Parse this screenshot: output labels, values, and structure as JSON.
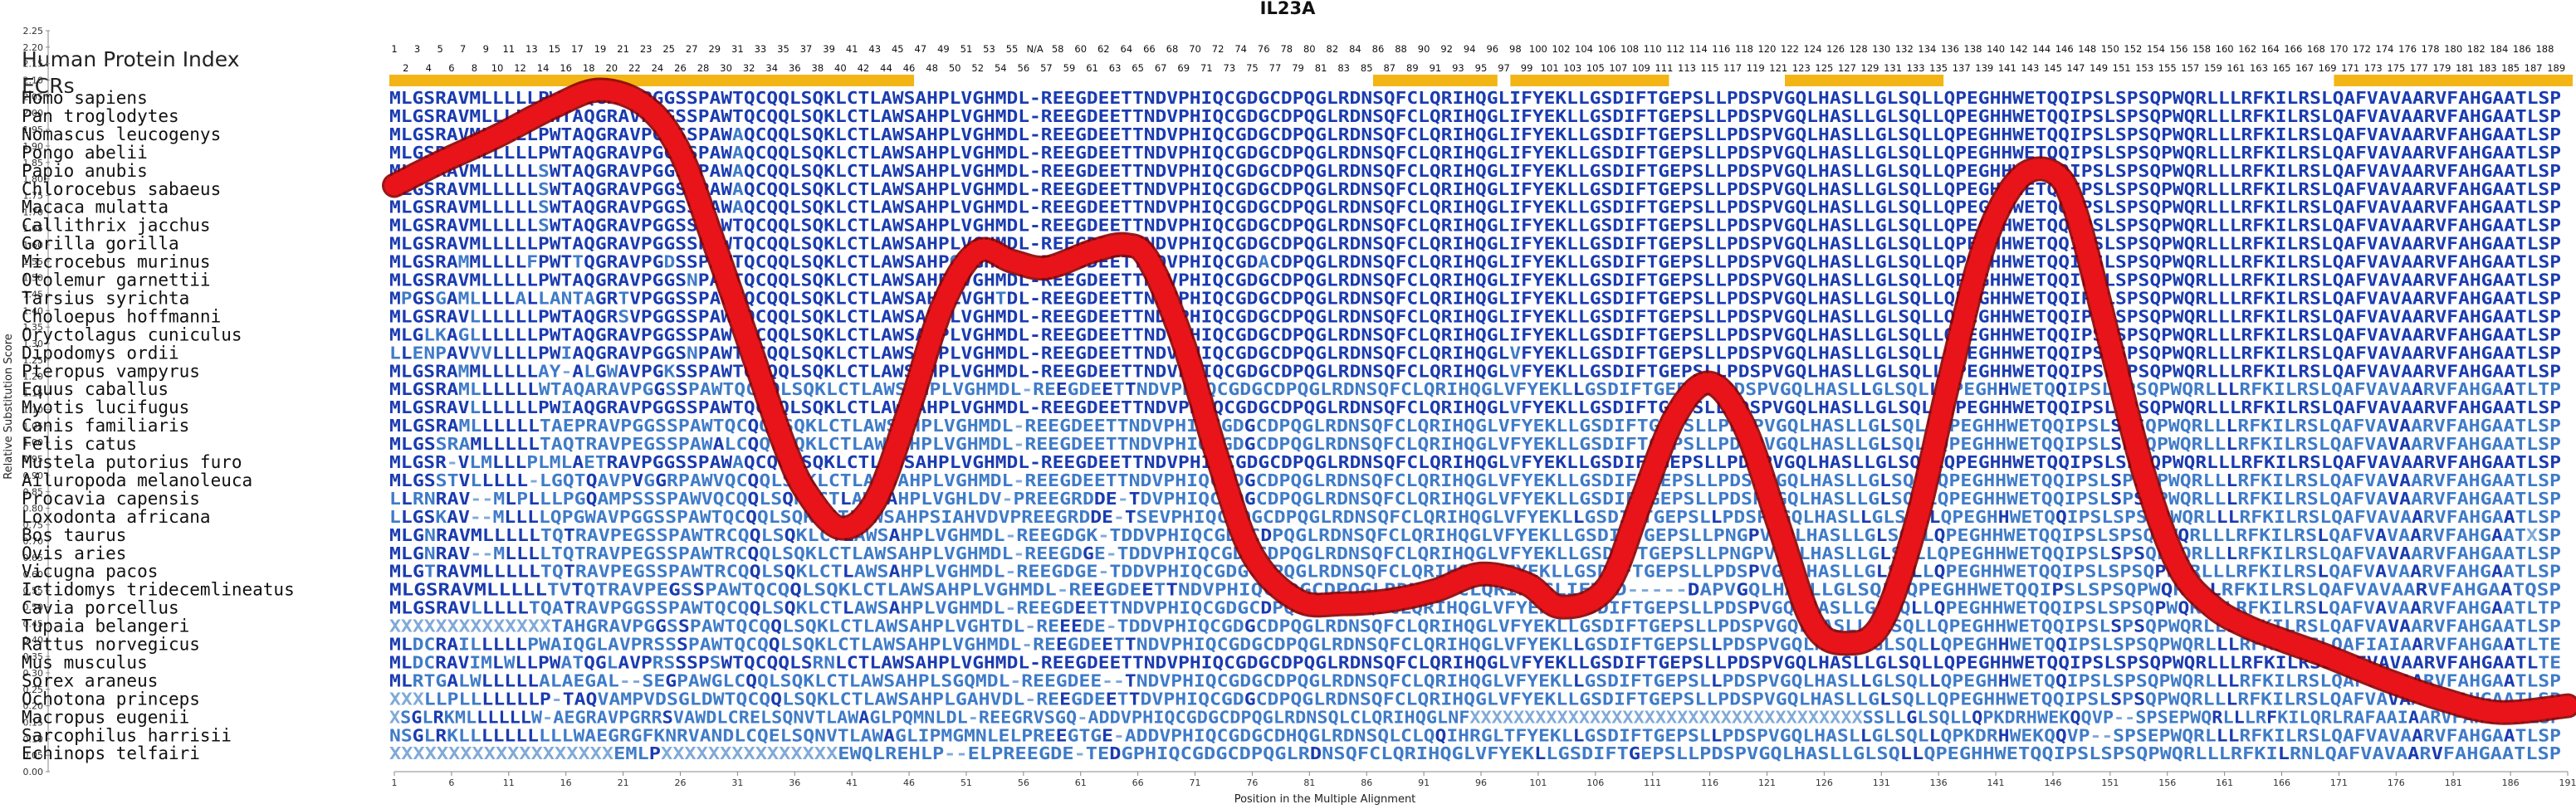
{
  "chart_data": {
    "type": "line",
    "title": "IL23A",
    "xlabel": "Position in the Multiple Alignment",
    "ylabel": "Relative Substitution Score",
    "xlim": [
      1,
      191
    ],
    "ylim": [
      0,
      2.25
    ],
    "y_ticks": [
      "0.00",
      "0.05",
      "0.10",
      "0.15",
      "0.20",
      "0.25",
      "0.30",
      "0.35",
      "0.40",
      "0.45",
      "0.50",
      "0.55",
      "0.60",
      "0.65",
      "0.70",
      "0.75",
      "0.80",
      "0.85",
      "0.90",
      "0.95",
      "1.00",
      "1.05",
      "1.10",
      "1.15",
      "1.20",
      "1.25",
      "1.30",
      "1.35",
      "1.40",
      "1.45",
      "1.50",
      "1.55",
      "1.60",
      "1.65",
      "1.70",
      "1.75",
      "1.80",
      "1.85",
      "1.90",
      "1.95",
      "2.00",
      "2.05",
      "2.10",
      "2.15",
      "2.20",
      "2.25"
    ],
    "x_ticks": [
      "1",
      "6",
      "11",
      "16",
      "21",
      "26",
      "31",
      "36",
      "41",
      "46",
      "51",
      "56",
      "61",
      "66",
      "71",
      "76",
      "81",
      "86",
      "91",
      "96",
      "101",
      "106",
      "111",
      "116",
      "121",
      "126",
      "131",
      "136",
      "141",
      "146",
      "151",
      "156",
      "161",
      "166",
      "171",
      "176",
      "181",
      "186",
      "191"
    ],
    "series": [
      {
        "x": [
          1,
          5,
          10,
          15,
          19,
          23,
          26,
          29,
          32,
          35,
          37,
          40,
          43,
          46,
          49,
          52,
          55,
          58,
          62,
          65,
          67,
          70,
          73,
          76,
          80,
          84,
          88,
          92,
          96,
          100,
          103,
          107,
          110,
          113,
          116,
          119,
          122,
          125,
          128,
          131,
          134,
          137,
          140,
          143,
          146,
          148,
          151,
          154,
          157,
          160,
          163,
          166,
          170,
          175,
          180,
          185,
          191
        ],
        "y": [
          1.78,
          1.85,
          1.93,
          2.02,
          2.07,
          2.02,
          1.88,
          1.6,
          1.3,
          1.0,
          0.85,
          0.74,
          0.82,
          1.1,
          1.42,
          1.58,
          1.55,
          1.53,
          1.58,
          1.6,
          1.55,
          1.3,
          0.95,
          0.66,
          0.52,
          0.51,
          0.52,
          0.55,
          0.6,
          0.57,
          0.5,
          0.56,
          0.82,
          1.08,
          1.18,
          1.05,
          0.75,
          0.45,
          0.39,
          0.45,
          0.75,
          1.2,
          1.6,
          1.8,
          1.82,
          1.7,
          1.3,
          0.9,
          0.62,
          0.5,
          0.44,
          0.4,
          0.35,
          0.28,
          0.22,
          0.18,
          0.2
        ]
      }
    ],
    "header": {
      "index_label": "Human Protein Index",
      "ecr_label": "ECRs",
      "index_row1": [
        "1",
        "3",
        "5",
        "7",
        "9",
        "11",
        "13",
        "15",
        "17",
        "19",
        "21",
        "23",
        "25",
        "27",
        "29",
        "31",
        "33",
        "35",
        "37",
        "39",
        "41",
        "43",
        "45",
        "47",
        "49",
        "51",
        "53",
        "55",
        "N/A",
        "58",
        "60",
        "62",
        "64",
        "66",
        "68",
        "70",
        "72",
        "74",
        "76",
        "78",
        "80",
        "82",
        "84",
        "86",
        "88",
        "90",
        "92",
        "94",
        "96",
        "98",
        "100",
        "102",
        "104",
        "106",
        "108",
        "110",
        "112",
        "114",
        "116",
        "118",
        "120",
        "122",
        "124",
        "126",
        "128",
        "130",
        "132",
        "134",
        "136",
        "138",
        "140",
        "142",
        "144",
        "146",
        "148",
        "150",
        "152",
        "154",
        "156",
        "158",
        "160",
        "162",
        "164",
        "166",
        "168",
        "170",
        "172",
        "174",
        "176",
        "178",
        "180",
        "182",
        "184",
        "186",
        "188"
      ],
      "index_row2": [
        "2",
        "4",
        "6",
        "8",
        "10",
        "12",
        "14",
        "16",
        "18",
        "20",
        "22",
        "24",
        "26",
        "28",
        "30",
        "32",
        "34",
        "36",
        "38",
        "40",
        "42",
        "44",
        "46",
        "48",
        "50",
        "52",
        "54",
        "56",
        "57",
        "59",
        "61",
        "63",
        "65",
        "67",
        "69",
        "71",
        "73",
        "75",
        "77",
        "79",
        "81",
        "83",
        "85",
        "87",
        "89",
        "91",
        "93",
        "95",
        "97",
        "99",
        "101",
        "103",
        "105",
        "107",
        "109",
        "111",
        "113",
        "115",
        "117",
        "119",
        "121",
        "123",
        "125",
        "127",
        "129",
        "131",
        "133",
        "135",
        "137",
        "139",
        "141",
        "143",
        "145",
        "147",
        "149",
        "151",
        "153",
        "155",
        "157",
        "159",
        "161",
        "163",
        "165",
        "167",
        "169",
        "171",
        "173",
        "175",
        "177",
        "179",
        "181",
        "183",
        "185",
        "187",
        "189"
      ],
      "ecr_bars": [
        [
          1,
          46
        ],
        [
          87,
          97
        ],
        [
          99,
          112
        ],
        [
          123,
          136
        ],
        [
          171,
          191
        ]
      ]
    },
    "species": [
      "Homo sapiens",
      "Pan troglodytes",
      "Nomascus leucogenys",
      "Pongo abelii",
      "Papio anubis",
      "Chlorocebus sabaeus",
      "Macaca mulatta",
      "Callithrix jacchus",
      "Gorilla gorilla",
      "Microcebus murinus",
      "Otolemur garnettii",
      "Tarsius syrichta",
      "Choloepus hoffmanni",
      "Oryctolagus cuniculus",
      "Dipodomys ordii",
      "Pteropus vampyrus",
      "Equus caballus",
      "Myotis lucifugus",
      "Canis familiaris",
      "Felis catus",
      "Mustela putorius furo",
      "Ailuropoda melanoleuca",
      "Procavia capensis",
      "Loxodonta africana",
      "Bos taurus",
      "Ovis aries",
      "Vicugna pacos",
      "Ictidomys tridecemlineatus",
      "Cavia porcellus",
      "Tupaia belangeri",
      "Rattus norvegicus",
      "Mus musculus",
      "Sorex araneus",
      "Ochotona princeps",
      "Macropus eugenii",
      "Sarcophilus harrisii",
      "Echinops telfairi"
    ],
    "sequences": [
      "MLGSRAVMLLLLLPWTAQGRAVPGGSSPAWTQCQQLSQKLCTLAWSAHPLVGHMDL-REEGDEETTNDVPHIQCGDGCDPQGLRDNSQFCLQRIHQGLIFYEKLLGSDIFTGEPSLLPDSPVGQLHASLLGLSQLLQPEGHHWETQQIPSLSPSQPWQRLLLRFKILRSLQAFVAVAARVFAHGAATLSP",
      "MLGSRAVMLLLLLPWTAQGRAVPGGSSPAWTQCQQLSQKLCTLAWSAHPLVGHMDL-REEGDEETTNDVPHIQCGDGCDPQGLRDNSQFCLQRIHQGLIFYEKLLGSDIFTGEPSLLPDSPVGQLHASLLGLSQLLQPEGHHWETQQIPSLSPSQPWQRLLLRFKILRSLQAFVAVAARVFAHGAATLSP",
      "MLGSRAVMLLLLLPWTAQGRAVPGGSSPAWAQCQQLSQKLCTLAWSAHPLVGHMDL-REEGDEETTNDVPHIQCGDGCDPQGLRDNSQFCLQRIHQGLIFYEKLLGSDIFTGEPSLLPDSPVGQLHASLLGLSQLLQPEGHHWETQQIPSLSPSQPWQRLLLRFKILRSLQAFVAVAARVFAHGAATLSP",
      "MLGSRAVMLLLLLPWTAQGRAVPGGSSPAWAQCQQLSQKLCTLAWSAHPLVGHMDL-REEGDEETTNDVPHIQCGDGCDPQGLRDNSQFCLQRIHQGLIFYEKLLGSDIFTGEPSLLPDSPVGQLHASLLGLSQLLQPEGHHWETQQIPSLSPSQPWQRLLLRFKILRSLQAFVAVAARVFAHGAATLSP",
      "MLGSRAVMLLLLLSWTAQGRAVPGGSSPAWAQCQQLSQKLCTLAWSAHPLVGHMDL-REEGDEETTNDVPHIQCGDGCDPQGLRDNSQFCLQRIHQGLIFYEKLLGSDIFTGEPSLLPDSPVGQLHASLLGLSQLLQPEGHHWETQQIPSLSPSQPWQRLLLRFKILRSLQAFVAVAARVFAHGAATLSP",
      "MLGSRAVMLLLLLSWTAQGRAVPGGSSPAWAQCQQLSQKLCTLAWSAHPLVGHMDL-REEGDEETTNDVPHIQCGDGCDPQGLRDNSQFCLQRIHQGLIFYEKLLGSDIFTGEPSLLPDSPVGQLHASLLGLSQLLQPEGHHWETQQIPSLSPSQPWQRLLLRFKILRSLQAFVAVAARVFAHGAATLSP",
      "MLGSRAVMLLLLLSWTAQGRAVPGGSSPAWAQCQQLSQKLCTLAWSAHPLVGHMDL-REEGDEETTNDVPHIQCGDGCDPQGLRDNSQFCLQRIHQGLIFYEKLLGSDIFTGEPSLLPDSPVGQLHASLLGLSQLLQPEGHHWETQQIPSLSPSQPWQRLLLRFKILRSLQAFVAVAARVFAHGAATLSP",
      "MLGSRAVMLLLLLSWTAQGRAVPGGSSPAWTQCQQLSQKLCTLAWSAHPLVGHMDL-REEGDEETTNDVPHIQCGDGCDPQGLRDNSQFCLQRIHQGLIFYEKLLGSDIFTGEPSLLPDSPVGQLHASLLGLSQLLQPEGHHWETQQIPSLSPSQPWQRLLLRFKILRSLQAFVAVAARVFAHGAATLSP",
      "MLGSRAVMLLLLLPWTAQGRAVPGGSSPAWTQCQQLSQKLCTLAWSAHPLVGHMDL-REEGDEETTNDVPHIQCGDGCDPQGLRDNSQFCLQRIHQGLIFYEKLLGSDIFTGEPSLLPDSPVGQLHASLLGLSQLLQPEGHHWETQQIPSLSPSQPWQRLLLRFKILRSLQAFVAVAARVFAHGAATLSP",
      "MLGSRAMMLLLLFPWTTQGRAVPGDSSPAWTQCQQLSQKLCTLAWSAHPQVGHMDL-REEGDEETTNDVPHIQCGDACDPQGLRDNSQFCLQRIHQGLIFYEKLLGSDIFTGEPSLLPDSPVGQLHASLLGLSQLLQPEGHHWETQQIPSLSPSQPWQRLLLRFKILRSLQAFVAVAARVFAHGAATLSP",
      "MLGSRAVMLLLLLPWTAQGRAVPGGSNPAWTQCQQLSQKLCTLAWSAHPLVGHMDL-REEGDEETTNDVPHIQCGDGCDPQGLRDNSQFCLQRIHQGLIFYEKLLGSDIFTGEPSLLPDSPVGQLHASLLGLSQLLQPEGHHWETQQIPSLSPSQPWQRLLLRFKILRSLQAFVAVAARVFAHGAATLSP",
      "MPGSGAMLLLLALLANTAGRTVPGGSSPAWTQCQQLSQKLCTLAWSAHPLVGHTDL-REEGDEETTNDVPHIQCGDGCDPQGLRDNSQFCLQRIHQGLIFYEKLLGSDIFTGEPSLLPDSPVGQLHASLLGLSQLLQPEGHHWETQQIPSLSPSQPWQRLLLRFKILRSLQAFVAVAARVFAHGAATLSP",
      "MLGSRAVLLLLLLPWTAQGRSVPGGSSPAWAQCQQLSQKLCTLAWSAHPLVGHMDL-REEGDEETTNDVPHIQCGDGCDPQGLRDNSQFCLQRIHQGLIFYEKLLGSDIFTGEPSLLPDSPVGQLHASLLGLSQLLQPEGHHWETQQIPSLSPSQPWQRLLLRFKILRSLQAFVAVAARVFAHGAATLSP",
      "MLGLKAGLLLLLLPWTAQGRAVPGGSSPAWTQCQQLSQKLCTLAWSAHPLVGHMDL-REEGDEETTNDVPHIQCGDGCDPQGLRDNSQFCLQRIHQGLIFYEKLLGSDIFTGEPSLLPDSPVGQLHASLLGLSQLLQPEGHHWETQQIPSLSPSQPWQRLLLRFKILRSLQAFVAVAARVFAHGAATLSP",
      "LLENPAVVVLLLLPWIAQGRAVPGGSNPAWTQCQQLSQKLCTLAWSAHPLVGHMDL-REEGDEETTNDVPHIQCGDGCDPQGLRDNSQFCLQRIHQGLVFYEKLLGSDIFTGEPSLLPDSPVGQLHASLLGLSQLLQPEGHHWETQQIPSLSPSQPWQRLLLRFKILRSLQAFVAVAARVFAHGAATLSP",
      "MLGSRAMMLLLLLAY-ALGWAVPGKSSPAWTQCQQLSQKLCTLAWSAHPLVGHMDL-REEGDEETTNDVPHIQCGDGCDPQGLRDNSQFCLQRIHQGLVFYEKLLGSDIFTGEPSLLPDSPVGQLHASLLGLSQLLQPEGHHWETQQIPSLSPSQPWQRLLLRFKILRSLQAFVAVAARVFAHGAATLSP",
      "MLGSRAMLLLLLLWTAQARAVPGGSSPAWTQCQQLSQKLCTLAWSAHPLVGHMDL-REEGDEETTNDVPHIQCGDGCDPQGLRDNSQFCLQRIHQGLVFYEKLLGSDIFTGEPSLLPDSPVGQLHASLLGLSQLLQPEGHHWETQQIPSLSPSQPWQRLLLRFKILRSLQAFVAVAARVFAHGAATLTP",
      "MLGSRAVLLLLLLPWIAQGRAVPGGSSPAWTQCQQLSQKLCTLAWSAHPLVGHMDL-REEGDEETTNDVPHIQCGDGCDPQGLRDNSQFCLQRIHQGLVFYEKLLGSDIFTGEPSLLPDSPVGQLHASLLGLSQLLQPEGHHWETQQIPSLSPSQPWQRLLLRFKILRSLQAFVAVAARVFAHGAATLSP",
      "MLGSRAMLLLLLLTAEPRAVPGGSSPAWTQCQQLSQKLCTLAWSAHPLVGHMDL-REEGDEETTNDVPHIQCGDGCDPQGLRDNSQFCLQRIHQGLVFYEKLLGSDIFTGEPSLLPDSPVGQLHASLLGLSQLLQPEGHHWETQQIPSLSPSQPWQRLLLRFKILRSLQAFVAVAARVFAHGAATLSP",
      "MLGSSRAMLLLLLTAQTRAVPEGSSPAWALCQQLSQKLCTLAWSAHPLVGHMDL-REEGDEETTNDVPHIQCGDGCDPQGLRDNSQFCLQRIHQGLVFYEKLLGSDIFTGEPSLLPDSPVGQLHASLLGLSQLLQPEGHHWETQQIPSLSPSQPWQRLLLRFKILRSLQAFVAVAARVFAHGAATLSP",
      "MLGSR-VLMLLLPLMLAETRAVPGGSSPAWAQCQQLSQKLCTLAWSAHPLVGHMDL-REEGDEETTNDVPHIQCGDGCDPQGLRDNSQFCLQRIHQGLVFYEKLLGSDIFTGEPSLLPDSPVGQLHASLLGLSQLLQPEGHHWETQQIPSLSPSQPWQRLLLRFKILRSLQAFVAVAARVFAHGAATLSP",
      "MLGSSTVLLLLL-LGQTQAVPVGGRPAWVQCQQLSQKLCTLAWSAHPLVGHMDL-REEGDEETTNDVPHIQCGDGCDPQGLRDNSQFCLQRIHQGLVFYEKLLGSDIFTGEPSLLPDSPVGQLHASLLGLSQLLQPEGHHWETQQIPSLSPSQPWQRLLLRFKILRSLQAFVAVAARVFAHGAATLSP",
      "LLRNRAV--MLPLLLPGQAMPSSSPAWVQCQQLSQKLCTLAWSAHPLVGHLDV-PREEGRDDE-TDVPHIQCGDGCDPQGLRDNSQFCLQRIHQGLVFYEKLLGSDIFTGEPSLLPDSPVGQLHASLLGLSQLLQPEGHHWETQQIPSLSPSQPWQRLLLRFKILRSLQAFVAVAARVFAHGAATLSP",
      "LLGSKAV--MLLLLQPGWAVPGGSSPAWTQCQQLSQKLCTLAWSAHPSIAHVDVPREEGRDDE-TSEVPHIQCGDGCDPQGLRDNSQFCLQRIHQGLVFYEKLLGSDIFTGEPSLLPDSPVGQLHASLLGLSQLLQPEGHHWETQQIPSLSPSQPWQRLLLRFKILRSLQAFVAVAARVFAHGAATLSP",
      "MLGNRAVMLLLLLTQTRAVPEGSSPAWTRCQQLSQKLCTLAWSAHPLVGHMDL-REEGDGK-TDDVPHIQCGDGCDPQGLRDNSQFCLQRIHQGLVFYEKLLGSDIFTGEPSLLPNGPVDQLHASLLGLSQLLQPEGHHWETQQIPSLSPSQPWQRLLLRFKILRSLQAFVAVAARVFAHGAATXSP",
      "MLGNRAV--MLLLLTQTRAVPEGSSPAWTRCQQLSQKLCTLAWSAHPLVGHMDL-REEGDGE-TDDVPHIQCGDGCDPQGLRDNSQFCLQRIHQGLVFYEKLLGSDIFTGEPSLLPNGPVDQLHASLLGLSQLLQPEGHHWETQQIPSLSPSQPWQRLLLRFKILRSLQAFVAVAARVFAHGAATLSP",
      "MLGTRAVMLLLLLTQTRAVPEGSSPAWTRCQQLSQKLCTLAWSAHPLVGHMDL-REEGDGE-TDDVPHIQCGDGCDPQGLRDNSQFCLQRIHQGLVFYEKLLGSDIFTGEPSLLPDSPVGQLHASLLGLSQLLQPEGHHWETQQIPSLSPSQPWQRLLLRFKILRSLQAFVAVAARVFAHGAATLSP",
      "MLGSRAVMLLLLLTVTQTRAVPEGSSPAWTQCQQLSQKLCTLAWSAHPLVGHMDL-REEGDEETTNDVPHIQCGDGCDPQGLRDNSQFCLQRIHQGLIFTGD-----DAPVGQLHASLLGLSQLLQPEGHHWETQQIPSLSPSQPWQRLLLRFKILRSLQAFVAVAARVFAHGAATQSP",
      "MLGSRAVLLLLLTQATRAVPGGSSPAWTQCQQLSQKLCTLAWSAHPLVGHMDL-REEGDEETTNDVPHIQCGDGCDPQGLRDNSQFCLQRIHQGLVFYEKLLGSDIFTGEPSLLPDSPVGQLHASLLGLSQLLQPEGHHWETQQIPSLSPSQPWQRLLLRFKILRSLQAFVAVAARVFAHGAATLTP",
      "XXXXXXXXXXXXXXTAHGRAVPGGSSPAWTQCQQLSQKLCTLAWSAHPLVGHTDL-REEEDE-TDDVPHIQCGDGCDPQGLRDNSQFCLQRIHQGLVFYEKLLGSDIFTGEPSLLPDSPVGQLHASLLGLSQLLQPEGHHWETQQIPSLSPSQPWQRLLLRFKILRSLQAFVAVAARVFAHGAATLSP",
      "MLDCRAILLLLLPWAIQGLAVPRSSSPAWTQCQQLSQKLCTLAWSAHPLVGHMDL-REEGDEETTNDVPHIQCGDGCDPQGLRDNSQFCLQRIHQGLVFYEKLLGSDIFTGEPSLLPDSPVGQLHASLLGLSQLLQPEGHHWETQQIPSLSPSQPWQRLLLRFKILRSLQAFIAIAARVFAHGAATLTE",
      "MLDCRAVIMLWLLPWATQGLAVPRSSSPSWTQCQQLSRNLCTLAWSAHPLVGHMDL-REEGDEETTNDVPHIQCGDGCDPQGLRDNSQFCLQRIHQGLVFYEKLLGSDIFTGEPSLLPDSPVGQLHASLLGLSQLLQPEGHHWETQQIPSLSPSQPWQRLLLRFKILRSLQAFVAVAARVFAHGAATLTE",
      "MLRTGALWLLLLLALAEGAL--SEGPAWGLCQQLSQKLCTLAWSAHPLSGQMDL-REEGDEE--TNDVPHIQCGDGCDPQGLRDNSQFCLQRIHQGLVFYEKLLGSDIFTGEPSLLPDSPVGQLHASLLGLSQLLQPEGHHWETQQIPSLSPSQPWQRLLLRFKILRSLQAFVAVAARVFAHGAATLSP",
      "XXXLLPLLLLLLLP-TAQVAMPVDSGLDWTQCQQLSQKLCTLAWSAHPLGAHVDL-REEGDEETTDVPHIQCGDGCDPQGLRDNSQFCLQRIHQGLVFYEKLLGSDIFTGEPSLLPDSPVGQLHASLLGLSQLLQPEGHHWETQQIPSLSPSQPWQRLLLRFKILRSLQAFVAVAARVFAHGAATLSP",
      "XSGLRKMLLLLLLW-AEGRAVPGRRSVAWDLCRELSQNVTLAWAGLPQMNLDL-REEGRVSGQ-ADDVPHIQCGDGCDPQGLRDNSQLCLQRIHQGLNFXXXXXXXXXXXXXXXXXXXXXXXXXXXXXXXXXXXXSSLLGLSQLLQPKDRHWEKQQVP--SPSEPWQRLLLRFKILQRLRAFAAIAARVFAHGAATLSP",
      "NSGLRKLLLLLLLLLLWAEGRGFKNRVANDLCQELSQNVTLAWAGLIPMGMNLELPREEGTGE-ADDVPHIQCGDGCDHQGLRDNSQLCLQQIHRGLTFYEKLLGSDIFTGEPSLLPDSPVGQLHASLLGLSQLLQPKDRHWEKQQVP--SPSEPWQRLLLRFKILRSLQAFVAVAARVFAHGAATLSP",
      "XXXXXXXXXXXXXXXXXXXEMLPXXXXXXXXXXXXXXXEWQLREHLP--ELPREEGDE-TEDGPHIQCGDGCDPQGLRDNSQFCLQRIHQGLVFYEKLLGSDIFTGEPSLLPDSPVGQLHASLLGLSQLLQPEGHHWETQQIPSLSPSQPWQRLLLRFKILRNLQAFVAVAARVFAHGAATLSP"
    ]
  },
  "colors": {
    "curve": "#e8141a",
    "curve_border": "#8b0000",
    "ecr_bar": "#f2b515",
    "seq_dark": "#1a3bb0",
    "seq_mid": "#3f7bc8",
    "seq_light": "#7fa9d8"
  }
}
